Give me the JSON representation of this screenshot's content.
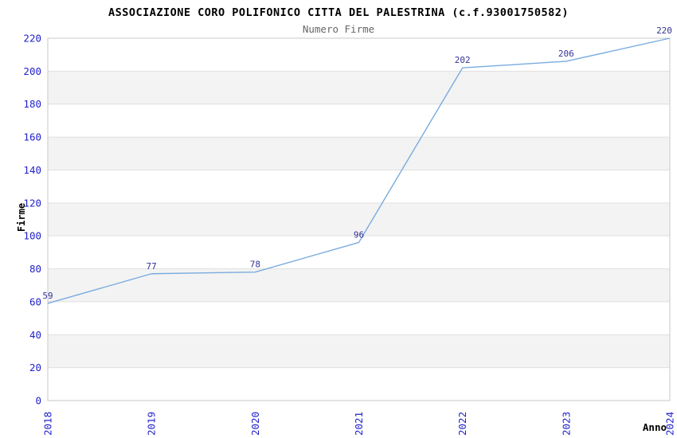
{
  "chart_data": {
    "type": "line",
    "title": "ASSOCIAZIONE CORO POLIFONICO CITTA DEL PALESTRINA (c.f.93001750582)",
    "subtitle": "Numero Firme",
    "xlabel": "Anno",
    "ylabel": "Firme",
    "x": [
      2018,
      2019,
      2020,
      2021,
      2022,
      2023,
      2024
    ],
    "values": [
      59,
      77,
      78,
      96,
      202,
      206,
      220
    ],
    "ylim": [
      0,
      220
    ],
    "ytick_step": 20,
    "grid": true,
    "legend": "none",
    "band_pattern": "alternating horizontal stripes every 20 units, gray on 20-40, 60-80, 100-120, 140-160, 180-200",
    "colors": {
      "line": "#79ABDF",
      "tick_label": "#2222CC",
      "point_label": "#333399",
      "band": "#F3F3F3",
      "gridline": "#E0E0E0",
      "border": "#C9C9C9",
      "title": "#000000",
      "subtitle": "#666666"
    }
  }
}
